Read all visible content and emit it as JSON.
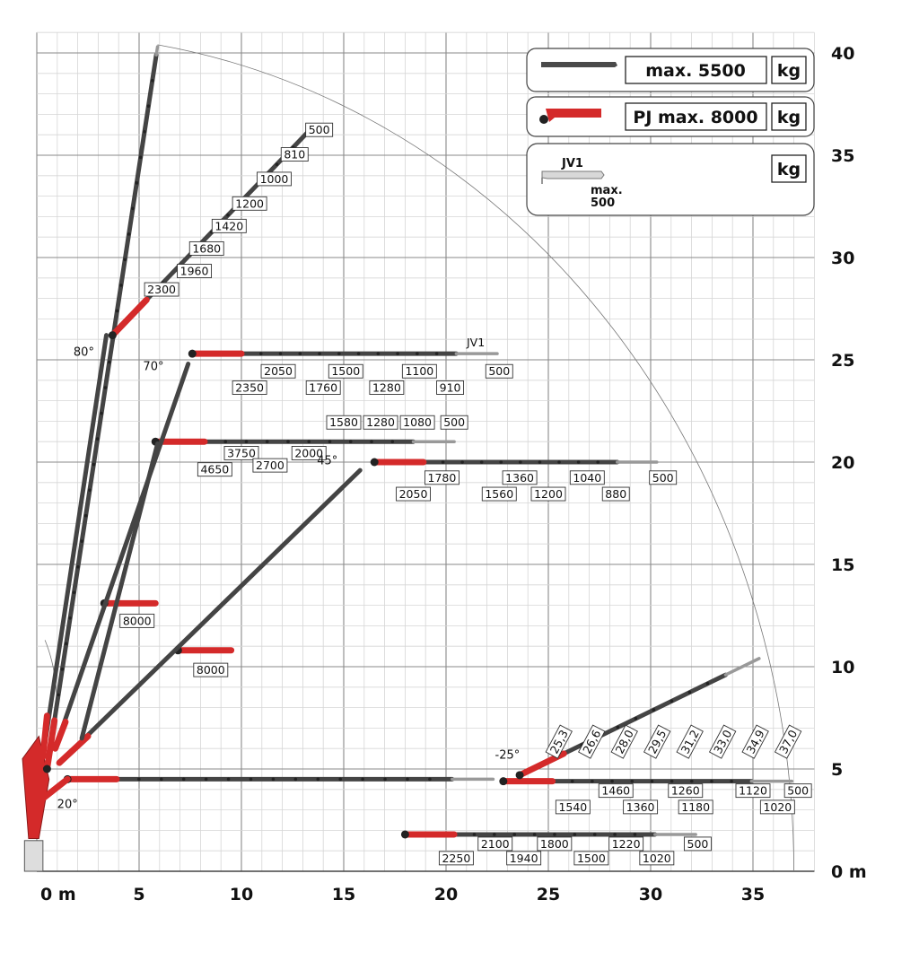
{
  "axes": {
    "x_ticks": [
      {
        "v": 0,
        "label": "0 m"
      },
      {
        "v": 5,
        "label": "5"
      },
      {
        "v": 10,
        "label": "10"
      },
      {
        "v": 15,
        "label": "15"
      },
      {
        "v": 20,
        "label": "20"
      },
      {
        "v": 25,
        "label": "25"
      },
      {
        "v": 30,
        "label": "30"
      },
      {
        "v": 35,
        "label": "35"
      }
    ],
    "y_ticks": [
      {
        "v": 0,
        "label": "0 m"
      },
      {
        "v": 5,
        "label": "5"
      },
      {
        "v": 10,
        "label": "10"
      },
      {
        "v": 15,
        "label": "15"
      },
      {
        "v": 20,
        "label": "20"
      },
      {
        "v": 25,
        "label": "25"
      },
      {
        "v": 30,
        "label": "30"
      },
      {
        "v": 35,
        "label": "35"
      },
      {
        "v": 40,
        "label": "40"
      }
    ],
    "xlim": [
      0,
      38
    ],
    "ylim": [
      0,
      41
    ]
  },
  "legend": {
    "main": {
      "label": "max. 5500",
      "unit": "kg"
    },
    "pj": {
      "label": "PJ max. 8000",
      "unit": "kg"
    },
    "jv1": {
      "name": "JV1",
      "max_line1": "max.",
      "max_line2": "500",
      "unit": "kg"
    }
  },
  "angles": [
    {
      "label": "80°",
      "x": 2.3,
      "y": 25.2
    },
    {
      "label": "70°",
      "x": 5.7,
      "y": 24.5
    },
    {
      "label": "45°",
      "x": 14.2,
      "y": 19.9
    },
    {
      "label": "-25°",
      "x": 23.0,
      "y": 5.5
    },
    {
      "label": "20°",
      "x": 1.5,
      "y": 3.1
    }
  ],
  "chart_data": {
    "type": "load-chart",
    "configurations": [
      {
        "name": "80deg",
        "start": [
          0.5,
          5.0
        ],
        "end": [
          5.9,
          40.3
        ],
        "capacities": []
      },
      {
        "name": "80deg-fly",
        "start": [
          3.7,
          26.2
        ],
        "end": [
          13.6,
          36.5
        ],
        "capacities": [
          {
            "x": 13.8,
            "y": 36.0,
            "kg": "500"
          },
          {
            "x": 12.6,
            "y": 34.8,
            "kg": "810"
          },
          {
            "x": 11.6,
            "y": 33.6,
            "kg": "1000"
          },
          {
            "x": 10.4,
            "y": 32.4,
            "kg": "1200"
          },
          {
            "x": 9.4,
            "y": 31.3,
            "kg": "1420"
          },
          {
            "x": 8.3,
            "y": 30.2,
            "kg": "1680"
          },
          {
            "x": 7.7,
            "y": 29.1,
            "kg": "1960"
          },
          {
            "x": 6.1,
            "y": 28.2,
            "kg": "2300"
          }
        ]
      },
      {
        "name": "70deg-horizontal",
        "start": [
          7.6,
          25.3
        ],
        "end": [
          22.5,
          25.3
        ],
        "label_jv": "JV1",
        "capacities": [
          {
            "x": 11.8,
            "y": 24.2,
            "kg": "2050"
          },
          {
            "x": 10.4,
            "y": 23.4,
            "kg": "2350"
          },
          {
            "x": 14.0,
            "y": 23.4,
            "kg": "1760"
          },
          {
            "x": 15.1,
            "y": 24.2,
            "kg": "1500"
          },
          {
            "x": 17.1,
            "y": 23.4,
            "kg": "1280"
          },
          {
            "x": 18.7,
            "y": 24.2,
            "kg": "1100"
          },
          {
            "x": 20.2,
            "y": 23.4,
            "kg": "910"
          },
          {
            "x": 22.6,
            "y": 24.2,
            "kg": "500"
          }
        ]
      },
      {
        "name": "mid-horizontal",
        "start": [
          5.8,
          21.0
        ],
        "end": [
          20.4,
          21.0
        ],
        "capacities": [
          {
            "x": 15.0,
            "y": 21.7,
            "kg": "1580"
          },
          {
            "x": 16.8,
            "y": 21.7,
            "kg": "1280"
          },
          {
            "x": 18.6,
            "y": 21.7,
            "kg": "1080"
          },
          {
            "x": 20.4,
            "y": 21.7,
            "kg": "500"
          },
          {
            "x": 10.0,
            "y": 20.2,
            "kg": "3750"
          },
          {
            "x": 13.3,
            "y": 20.2,
            "kg": "2000"
          },
          {
            "x": 8.7,
            "y": 19.4,
            "kg": "4650"
          },
          {
            "x": 11.4,
            "y": 19.6,
            "kg": "2700"
          }
        ]
      },
      {
        "name": "45deg-horizontal",
        "start": [
          16.5,
          20.0
        ],
        "end": [
          30.3,
          20.0
        ],
        "capacities": [
          {
            "x": 19.8,
            "y": 19.0,
            "kg": "1780"
          },
          {
            "x": 18.4,
            "y": 18.2,
            "kg": "2050"
          },
          {
            "x": 22.6,
            "y": 18.2,
            "kg": "1560"
          },
          {
            "x": 23.6,
            "y": 19.0,
            "kg": "1360"
          },
          {
            "x": 25.0,
            "y": 18.2,
            "kg": "1200"
          },
          {
            "x": 26.9,
            "y": 19.0,
            "kg": "1040"
          },
          {
            "x": 28.3,
            "y": 18.2,
            "kg": "880"
          },
          {
            "x": 30.6,
            "y": 19.0,
            "kg": "500"
          }
        ]
      },
      {
        "name": "pj-only-high",
        "start": [
          3.3,
          13.1
        ],
        "end": [
          5.8,
          13.1
        ],
        "capacities": [
          {
            "x": 4.9,
            "y": 12.0,
            "kg": "8000"
          }
        ]
      },
      {
        "name": "pj-only-mid",
        "start": [
          6.9,
          10.8
        ],
        "end": [
          9.5,
          10.8
        ],
        "capacities": [
          {
            "x": 8.5,
            "y": 9.6,
            "kg": "8000"
          }
        ]
      },
      {
        "name": "20deg-horizontal",
        "start": [
          1.5,
          4.5
        ],
        "end": [
          22.3,
          4.5
        ],
        "capacities": []
      },
      {
        "name": "minus25-horizontal",
        "start": [
          22.8,
          4.4
        ],
        "end": [
          36.9,
          4.4
        ],
        "capacities": [
          {
            "x": 28.3,
            "y": 3.7,
            "kg": "1460"
          },
          {
            "x": 26.2,
            "y": 2.9,
            "kg": "1540"
          },
          {
            "x": 29.5,
            "y": 2.9,
            "kg": "1360"
          },
          {
            "x": 31.7,
            "y": 3.7,
            "kg": "1260"
          },
          {
            "x": 32.2,
            "y": 2.9,
            "kg": "1180"
          },
          {
            "x": 35.0,
            "y": 3.7,
            "kg": "1120"
          },
          {
            "x": 36.2,
            "y": 2.9,
            "kg": "1020"
          },
          {
            "x": 37.2,
            "y": 3.7,
            "kg": "500"
          }
        ]
      },
      {
        "name": "minus25-angled",
        "start": [
          23.6,
          4.7
        ],
        "end": [
          35.3,
          10.4
        ],
        "reach_labels": [
          "25,3",
          "26,6",
          "28,0",
          "29,5",
          "31,2",
          "33,0",
          "34,9",
          "37,0"
        ]
      },
      {
        "name": "low-horizontal",
        "start": [
          18.0,
          1.8
        ],
        "end": [
          32.2,
          1.8
        ],
        "capacities": [
          {
            "x": 20.5,
            "y": 0.4,
            "kg": "2250"
          },
          {
            "x": 22.4,
            "y": 1.1,
            "kg": "2100"
          },
          {
            "x": 23.8,
            "y": 0.4,
            "kg": "1940"
          },
          {
            "x": 25.3,
            "y": 1.1,
            "kg": "1800"
          },
          {
            "x": 27.1,
            "y": 0.4,
            "kg": "1500"
          },
          {
            "x": 28.8,
            "y": 1.1,
            "kg": "1220"
          },
          {
            "x": 30.3,
            "y": 0.4,
            "kg": "1020"
          },
          {
            "x": 32.3,
            "y": 1.1,
            "kg": "500"
          }
        ]
      }
    ]
  }
}
